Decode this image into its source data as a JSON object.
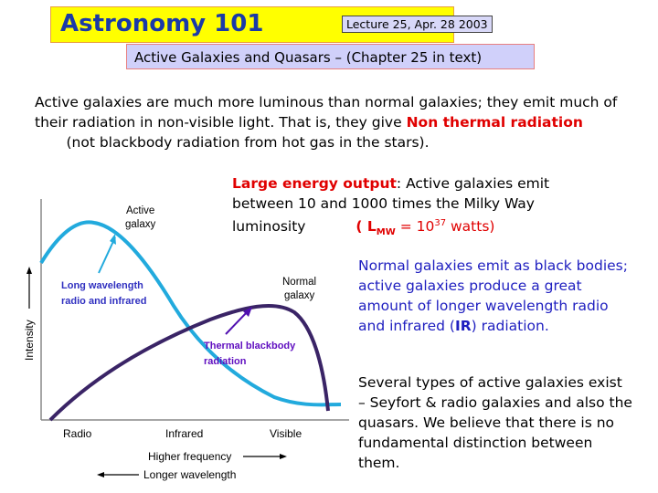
{
  "header": {
    "title": "Astronomy 101",
    "lecture": "Lecture 25,  Apr. 28 2003",
    "subtitle": "Active Galaxies and Quasars – (Chapter 25 in text)"
  },
  "intro": {
    "text1": "Active galaxies are much more luminous than normal galaxies; they emit much of their radiation in non-visible light.   That is, they give ",
    "highlight": "Non thermal radiation",
    "text2": "       (not blackbody radiation from hot gas in the stars)."
  },
  "energy": {
    "label": "Large energy output",
    "text": ": Active galaxies emit between 10 and 1000 times the Milky Way luminosity",
    "lmw_open": "( L",
    "lmw_sub": "MW",
    "lmw_mid": " = 10",
    "lmw_exp": "37",
    "lmw_close": " watts)"
  },
  "normal": {
    "text1": "Normal galaxies emit as black bodies;  active galaxies produce a great amount of longer wavelength radio and infrared (",
    "ir": "IR",
    "text2": ") radiation."
  },
  "types": {
    "text": "Several types of active galaxies exist – Seyfort & radio galaxies and also the quasars.  We believe that there is no fundamental distinction between them."
  },
  "diagram": {
    "y_label": "Intensity",
    "x_ticks": [
      "Radio",
      "Infrared",
      "Visible"
    ],
    "freq_label": "Higher frequency",
    "wave_label": "Longer wavelength",
    "active_label": [
      "Active",
      "galaxy"
    ],
    "normal_label": [
      "Normal",
      "galaxy"
    ],
    "annot_long": [
      "Long wavelength",
      "radio and infrared"
    ],
    "annot_thermal": [
      "Thermal blackbody",
      "radiation"
    ],
    "colors": {
      "active": "#22aadd",
      "normal": "#3a2466",
      "annot_long": "#3030c0",
      "annot_thermal": "#6010c0"
    }
  }
}
